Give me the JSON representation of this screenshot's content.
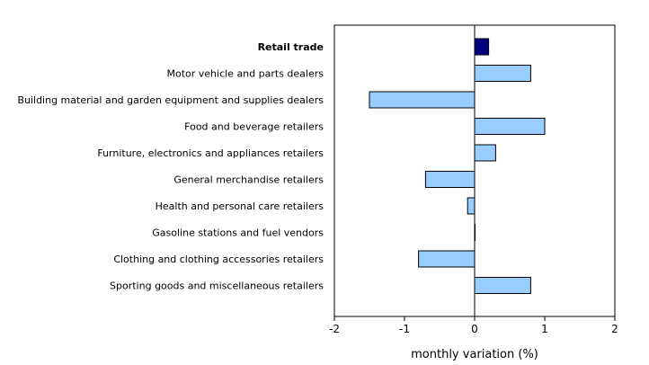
{
  "chart_data": {
    "type": "bar",
    "orientation": "horizontal",
    "categories": [
      "Retail trade",
      "Motor vehicle and parts dealers",
      "Building material and garden equipment and supplies dealers",
      "Food and beverage retailers",
      "Furniture, electronics and appliances retailers",
      "General merchandise retailers",
      "Health and personal care retailers",
      "Gasoline stations and fuel vendors",
      "Clothing and clothing accessories retailers",
      "Sporting goods and miscellaneous retailers"
    ],
    "values": [
      0.2,
      0.8,
      -1.5,
      1.0,
      0.3,
      -0.7,
      -0.1,
      0.0,
      -0.8,
      0.8
    ],
    "highlight_index": 0,
    "xlim": [
      -2,
      2
    ],
    "xticks": [
      -2,
      -1,
      0,
      1,
      2
    ],
    "xtick_labels": [
      "-2",
      "-1",
      "0",
      "1",
      "2"
    ],
    "xlabel": "monthly variation (%)",
    "title": "",
    "grid": false,
    "colors": {
      "total_bar": "#000080",
      "bar": "#99CCFF",
      "bar_stroke": "#000000",
      "axis": "#000000"
    }
  }
}
